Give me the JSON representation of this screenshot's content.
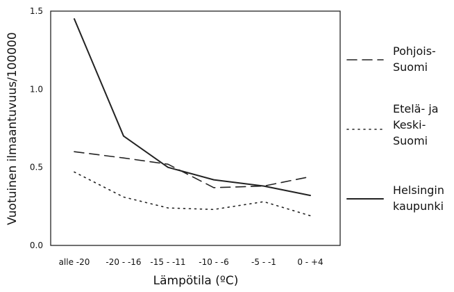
{
  "chart_data": {
    "type": "line",
    "title": "",
    "xlabel": "Lämpötila (ºC)",
    "ylabel": "Vuotuinen ilmaantuvuus/100000",
    "categories": [
      "alle -20",
      "-20 - -16",
      "-15 - -11",
      "-10 - -6",
      "-5 - -1",
      "0 - +4"
    ],
    "ylim": [
      0,
      1.5
    ],
    "yticks": [
      "0.0",
      "0.5",
      "1.0",
      "1.5"
    ],
    "grid": false,
    "legend_position": "right",
    "series": [
      {
        "name": "Pohjois-Suomi",
        "name_lines": [
          "Pohjois-",
          "Suomi"
        ],
        "style": "dashed",
        "color": "#222222",
        "values": [
          0.6,
          0.56,
          0.52,
          0.37,
          0.38,
          0.44
        ]
      },
      {
        "name": "Etelä- ja Keski-Suomi",
        "name_lines": [
          "Etelä- ja",
          "Keski-",
          "Suomi"
        ],
        "style": "dotted",
        "color": "#222222",
        "values": [
          0.47,
          0.31,
          0.24,
          0.23,
          0.28,
          0.19
        ]
      },
      {
        "name": "Helsingin kaupunki",
        "name_lines": [
          "Helsingin",
          "kaupunki"
        ],
        "style": "solid",
        "color": "#222222",
        "values": [
          1.45,
          0.7,
          0.5,
          0.42,
          0.38,
          0.32
        ]
      }
    ]
  }
}
